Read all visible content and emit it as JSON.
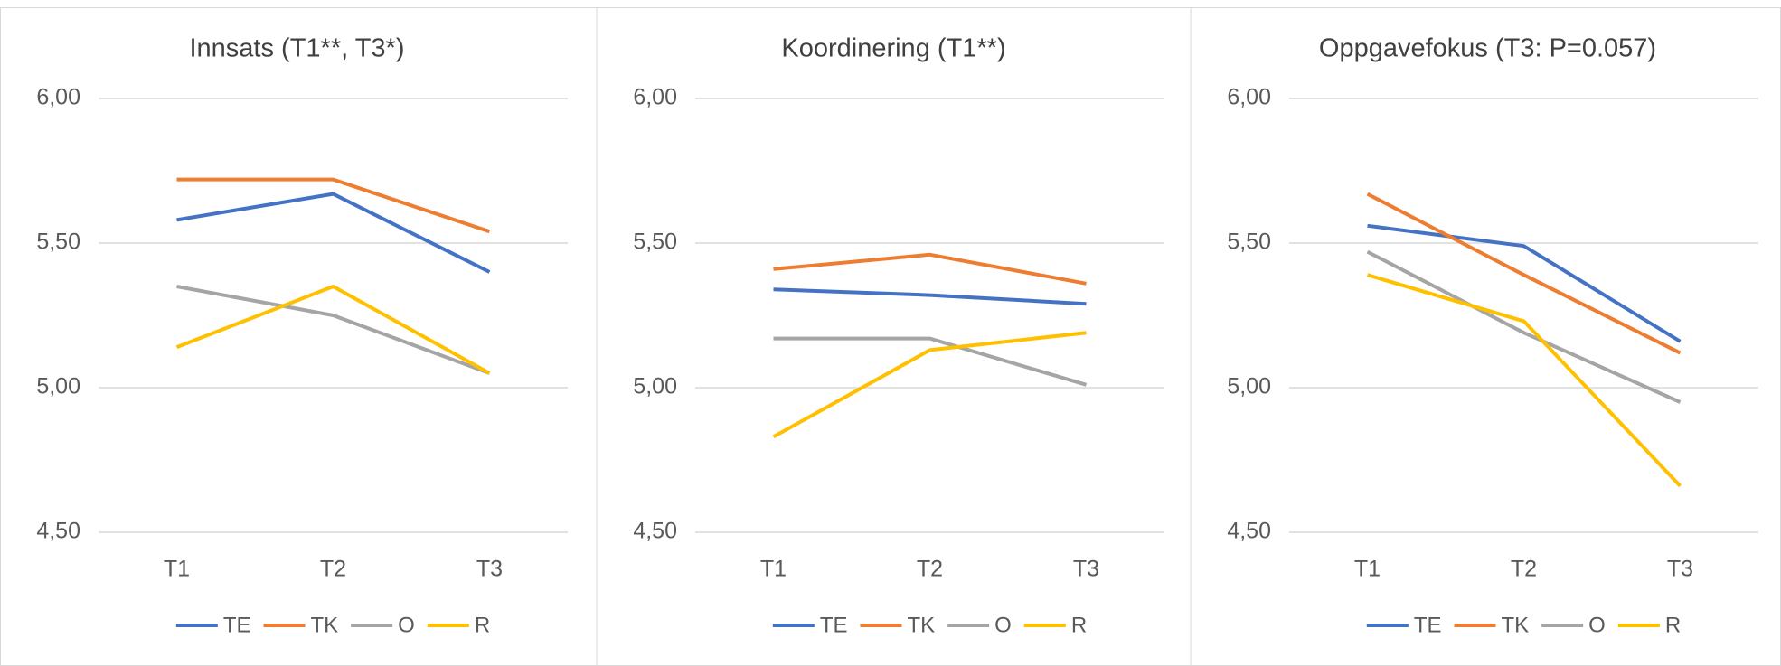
{
  "chart_data": [
    {
      "type": "line",
      "title": "Innsats (T1**, T3*)",
      "categories": [
        "T1",
        "T2",
        "T3"
      ],
      "ylim": [
        4.5,
        6
      ],
      "yticks": [
        {
          "value": 4.5,
          "label": "4,50"
        },
        {
          "value": 5,
          "label": "5,00"
        },
        {
          "value": 5.5,
          "label": "5,50"
        },
        {
          "value": 6,
          "label": "6,00"
        }
      ],
      "grid": true,
      "series": [
        {
          "name": "TE",
          "color": "#4472c4",
          "values": [
            5.58,
            5.67,
            5.4
          ]
        },
        {
          "name": "TK",
          "color": "#ed7d31",
          "values": [
            5.72,
            5.72,
            5.54
          ]
        },
        {
          "name": "O",
          "color": "#a5a5a5",
          "values": [
            5.35,
            5.25,
            5.05
          ]
        },
        {
          "name": "R",
          "color": "#ffc000",
          "values": [
            5.14,
            5.35,
            5.05
          ]
        }
      ]
    },
    {
      "type": "line",
      "title": "Koordinering (T1**)",
      "categories": [
        "T1",
        "T2",
        "T3"
      ],
      "ylim": [
        4.5,
        6
      ],
      "yticks": [
        {
          "value": 4.5,
          "label": "4,50"
        },
        {
          "value": 5,
          "label": "5,00"
        },
        {
          "value": 5.5,
          "label": "5,50"
        },
        {
          "value": 6,
          "label": "6,00"
        }
      ],
      "grid": true,
      "series": [
        {
          "name": "TE",
          "color": "#4472c4",
          "values": [
            5.34,
            5.32,
            5.29
          ]
        },
        {
          "name": "TK",
          "color": "#ed7d31",
          "values": [
            5.41,
            5.46,
            5.36
          ]
        },
        {
          "name": "O",
          "color": "#a5a5a5",
          "values": [
            5.17,
            5.17,
            5.01
          ]
        },
        {
          "name": "R",
          "color": "#ffc000",
          "values": [
            4.83,
            5.13,
            5.19
          ]
        }
      ]
    },
    {
      "type": "line",
      "title": "Oppgavefokus (T3: P=0.057)",
      "categories": [
        "T1",
        "T2",
        "T3"
      ],
      "ylim": [
        4.5,
        6
      ],
      "yticks": [
        {
          "value": 4.5,
          "label": "4,50"
        },
        {
          "value": 5,
          "label": "5,00"
        },
        {
          "value": 5.5,
          "label": "5,50"
        },
        {
          "value": 6,
          "label": "6,00"
        }
      ],
      "grid": true,
      "series": [
        {
          "name": "TE",
          "color": "#4472c4",
          "values": [
            5.56,
            5.49,
            5.16
          ]
        },
        {
          "name": "TK",
          "color": "#ed7d31",
          "values": [
            5.67,
            5.39,
            5.12
          ]
        },
        {
          "name": "O",
          "color": "#a5a5a5",
          "values": [
            5.47,
            5.19,
            4.95
          ]
        },
        {
          "name": "R",
          "color": "#ffc000",
          "values": [
            5.39,
            5.23,
            4.66
          ]
        }
      ]
    }
  ]
}
